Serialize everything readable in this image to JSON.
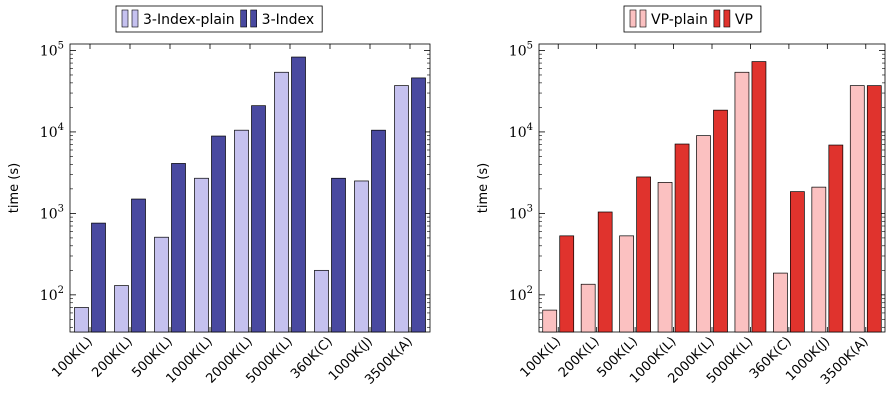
{
  "chart_data": [
    {
      "type": "bar",
      "scale": "log",
      "ylabel": "time (s)",
      "ylim": [
        35,
        120000
      ],
      "yticks": [
        100,
        1000,
        10000,
        100000
      ],
      "yticks_mantissa": "10",
      "yticks_exponents": [
        "2",
        "3",
        "4",
        "5"
      ],
      "categories": [
        "100K(L)",
        "200K(L)",
        "500K(L)",
        "1000K(L)",
        "2000K(L)",
        "5000K(L)",
        "360K(C)",
        "1000K(J)",
        "3500K(A)"
      ],
      "legend_position": "top",
      "series": [
        {
          "name": "3-Index-plain",
          "color": "#c5c1ef",
          "values": [
            70,
            130,
            510,
            2700,
            10500,
            54000,
            200,
            2500,
            37000
          ]
        },
        {
          "name": "3-Index",
          "color": "#4949a0",
          "values": [
            760,
            1500,
            4100,
            8900,
            21000,
            83000,
            2700,
            10500,
            46000
          ]
        }
      ]
    },
    {
      "type": "bar",
      "scale": "log",
      "ylabel": "time (s)",
      "ylim": [
        35,
        120000
      ],
      "yticks": [
        100,
        1000,
        10000,
        100000
      ],
      "yticks_mantissa": "10",
      "yticks_exponents": [
        "2",
        "3",
        "4",
        "5"
      ],
      "categories": [
        "100K(L)",
        "200K(L)",
        "500K(L)",
        "1000K(L)",
        "2000K(L)",
        "5000K(L)",
        "360K(C)",
        "1000K(J)",
        "3500K(A)"
      ],
      "legend_position": "top",
      "series": [
        {
          "name": "VP-plain",
          "color": "#fbc1c1",
          "values": [
            65,
            135,
            530,
            2400,
            9000,
            54000,
            185,
            2100,
            37000
          ]
        },
        {
          "name": "VP",
          "color": "#e0332d",
          "values": [
            530,
            1040,
            2800,
            7100,
            18500,
            73000,
            1850,
            6900,
            37000
          ]
        }
      ]
    }
  ]
}
